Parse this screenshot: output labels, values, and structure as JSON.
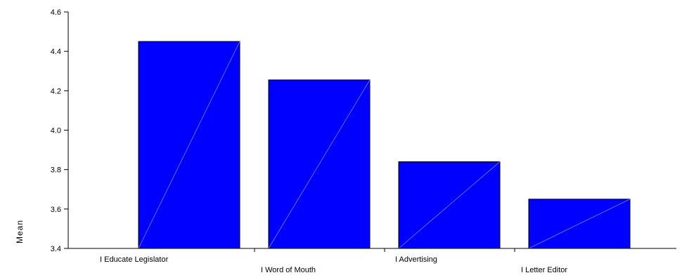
{
  "chart_data": {
    "type": "bar",
    "title": "",
    "xlabel": "",
    "ylabel": "Mean",
    "categories": [
      "I Educate Legislator",
      "I Word of Mouth",
      "I Advertising",
      "I Letter Editor"
    ],
    "values": [
      4.45,
      4.255,
      3.84,
      3.65
    ],
    "ylim": [
      3.4,
      4.6
    ],
    "yticks": [
      "3.4",
      "3.6",
      "3.8",
      "4.0",
      "4.2",
      "4.4",
      "4.6"
    ],
    "grid": false,
    "legend": "none",
    "colors": {
      "bar_fill": "#0000ff",
      "bar_stroke": "#000000",
      "diagonal": "#8080ff",
      "axis": "#000000"
    }
  }
}
